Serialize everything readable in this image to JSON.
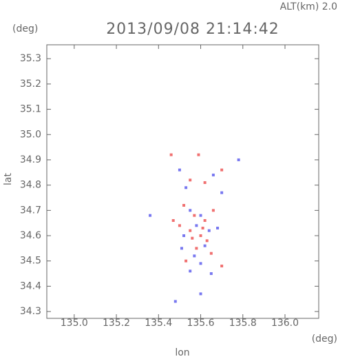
{
  "chart_data": {
    "type": "scatter",
    "title": "2013/09/08 21:14:42",
    "subtitle": "ALT(km) 2.0",
    "y_unit": "(deg)",
    "x_unit": "(deg)",
    "y_label": "lat",
    "x_label": "lon",
    "xlim": [
      134.87,
      136.16
    ],
    "ylim": [
      34.273,
      35.355
    ],
    "xticks": [
      {
        "value": 135,
        "label": "135.0"
      },
      135.2,
      135.4,
      135.6,
      135.8,
      {
        "value": 136,
        "label": "136.0"
      }
    ],
    "yticks": [
      34.3,
      34.4,
      34.5,
      34.6,
      34.7,
      34.8,
      34.9,
      {
        "value": 35,
        "label": "35.0"
      },
      35.1,
      35.2,
      35.3
    ],
    "series": [
      {
        "color": "#f07070",
        "x": [
          135.46,
          135.59,
          135.55,
          135.62,
          135.7,
          135.52,
          135.57,
          135.62,
          135.66,
          135.5,
          135.55,
          135.6,
          135.63,
          135.58,
          135.65,
          135.7,
          135.53,
          135.47,
          135.61,
          135.56
        ],
        "values": [
          34.92,
          34.92,
          34.82,
          34.81,
          34.86,
          34.72,
          34.68,
          34.66,
          34.7,
          34.64,
          34.62,
          34.6,
          34.58,
          34.55,
          34.53,
          34.48,
          34.5,
          34.66,
          34.63,
          34.59
        ]
      },
      {
        "color": "#7878f0",
        "x": [
          135.78,
          135.5,
          135.53,
          135.66,
          135.7,
          135.36,
          135.55,
          135.6,
          135.64,
          135.52,
          135.58,
          135.62,
          135.57,
          135.6,
          135.55,
          135.48,
          135.6,
          135.65,
          135.68,
          135.51
        ],
        "values": [
          34.9,
          34.86,
          34.79,
          34.84,
          34.77,
          34.68,
          34.7,
          34.68,
          34.62,
          34.6,
          34.64,
          34.56,
          34.52,
          34.49,
          34.46,
          34.34,
          34.37,
          34.45,
          34.63,
          34.55
        ]
      }
    ]
  }
}
